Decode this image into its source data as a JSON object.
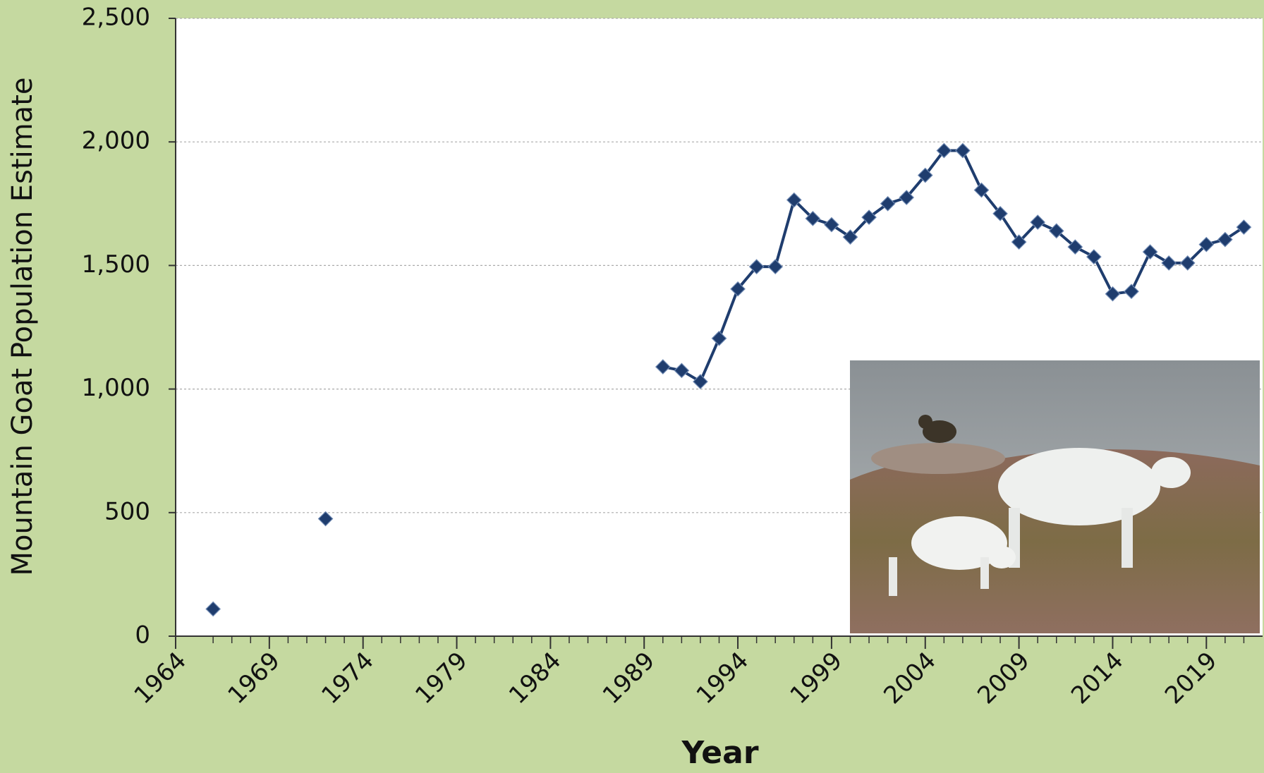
{
  "chart_data": {
    "type": "line",
    "x_label": "Year",
    "y_label": "Mountain Goat Population Estimate",
    "x": [
      1966,
      1967,
      1968,
      1969,
      1970,
      1971,
      1972,
      1973,
      1974,
      1975,
      1976,
      1977,
      1978,
      1979,
      1980,
      1981,
      1982,
      1983,
      1984,
      1985,
      1986,
      1987,
      1988,
      1989,
      1990,
      1991,
      1992,
      1993,
      1994,
      1995,
      1996,
      1997,
      1998,
      1999,
      2000,
      2001,
      2002,
      2003,
      2004,
      2005,
      2006,
      2007,
      2008,
      2009,
      2010,
      2011,
      2012,
      2013,
      2014,
      2015,
      2016,
      2017,
      2018,
      2019,
      2020,
      2021
    ],
    "series": [
      {
        "color": "#1f3d6e",
        "values": [
          110,
          null,
          null,
          null,
          null,
          null,
          475,
          null,
          null,
          null,
          null,
          null,
          null,
          null,
          null,
          null,
          null,
          null,
          null,
          null,
          null,
          null,
          null,
          null,
          1090,
          1075,
          1030,
          1205,
          1405,
          1495,
          1495,
          1765,
          1690,
          1665,
          1615,
          1695,
          1750,
          1775,
          1865,
          1965,
          1965,
          1805,
          1710,
          1595,
          1675,
          1640,
          1575,
          1535,
          1385,
          1395,
          1555,
          1510,
          1510,
          1585,
          1605,
          1655
        ]
      }
    ],
    "xlim": [
      1964,
      2022
    ],
    "xticks": [
      1964,
      1969,
      1974,
      1979,
      1984,
      1989,
      1994,
      1999,
      2004,
      2009,
      2014,
      2019
    ],
    "ylim": [
      0,
      2500
    ],
    "yticks": [
      0,
      {
        "value": 500,
        "label": "500"
      },
      {
        "value": 1000,
        "label": "1,000"
      },
      {
        "value": 1500,
        "label": "1,500"
      },
      {
        "value": 2000,
        "label": "2,000"
      },
      {
        "value": 2500,
        "label": "2,500"
      }
    ],
    "grid": true
  }
}
